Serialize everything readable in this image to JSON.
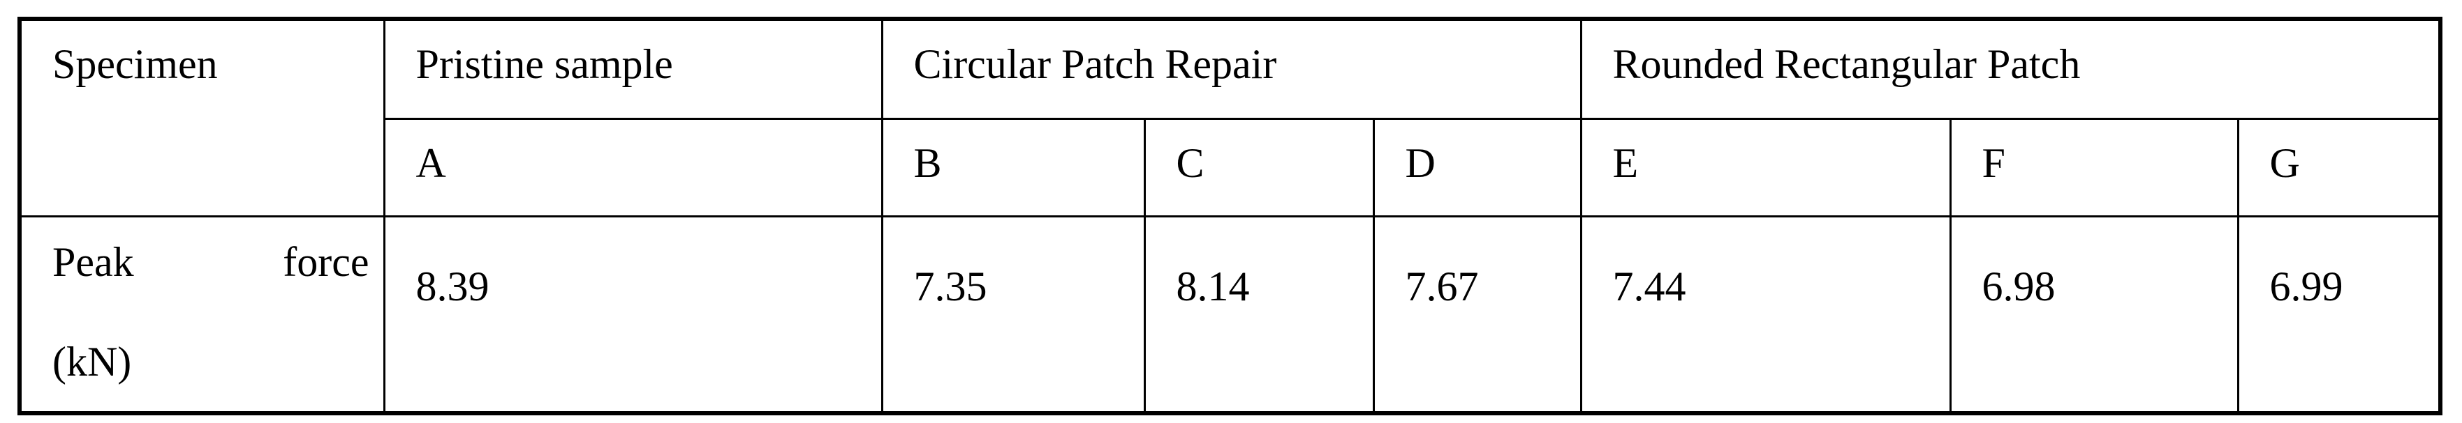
{
  "table": {
    "header": {
      "specimen": "Specimen",
      "groups": [
        "Pristine sample",
        "Circular Patch Repair",
        "Rounded Rectangular Patch"
      ],
      "ids": [
        "A",
        "B",
        "C",
        "D",
        "E",
        "F",
        "G"
      ]
    },
    "row": {
      "label_line1": "Peak force",
      "label_line2": "(kN)",
      "values": [
        "8.39",
        "7.35",
        "8.14",
        "7.67",
        "7.44",
        "6.98",
        "6.99"
      ]
    }
  }
}
